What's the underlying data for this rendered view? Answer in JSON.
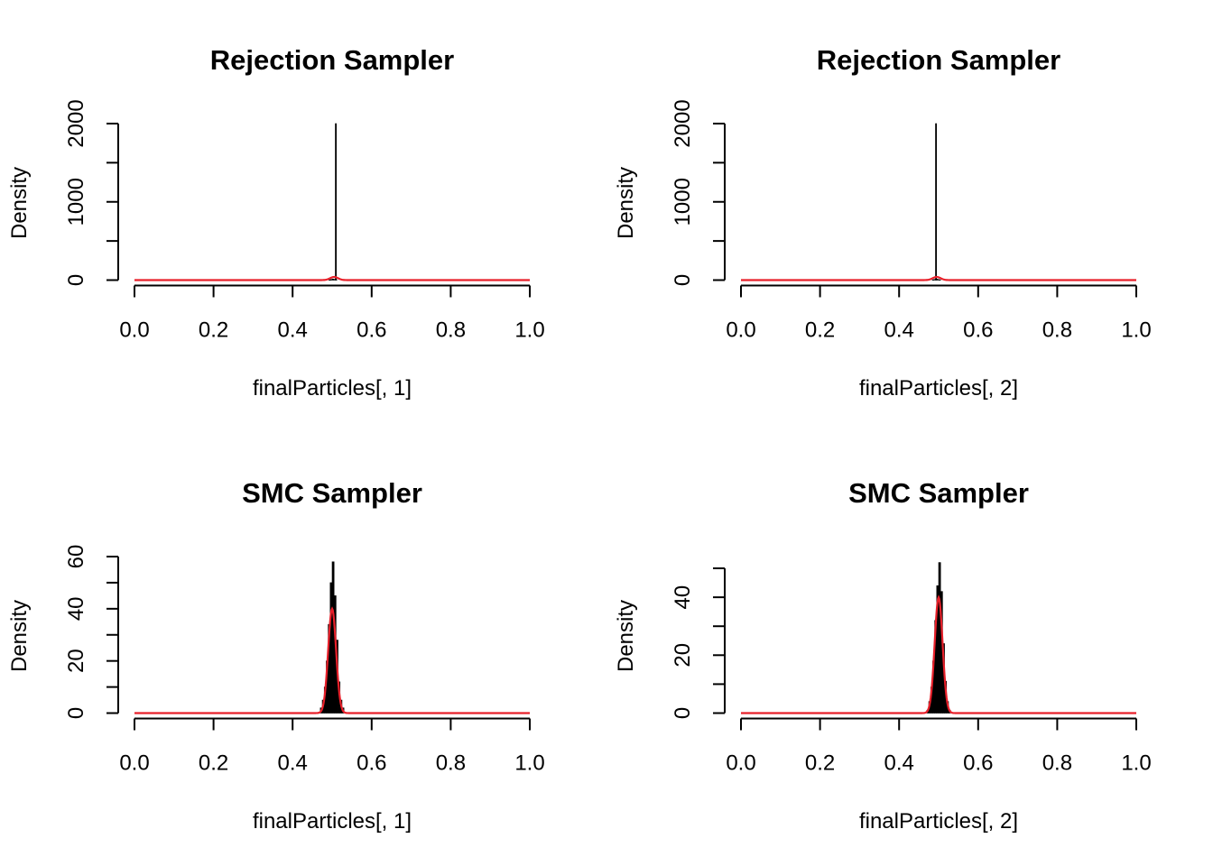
{
  "chart_data": [
    {
      "type": "histogram",
      "title": "Rejection Sampler",
      "xlabel": "finalParticles[, 1]",
      "ylabel": "Density",
      "xlim": [
        0,
        1
      ],
      "ylim": [
        0,
        2000
      ],
      "x_ticks": [
        "0.0",
        "0.2",
        "0.4",
        "0.6",
        "0.8",
        "1.0"
      ],
      "y_ticks": [
        "0",
        "1000",
        "2000"
      ],
      "y_minor_ticks": [
        500,
        1500
      ],
      "bars": [
        {
          "x0": 0.492,
          "x1": 0.496,
          "value": 3
        },
        {
          "x0": 0.496,
          "x1": 0.5,
          "value": 8
        },
        {
          "x0": 0.5,
          "x1": 0.504,
          "value": 14
        },
        {
          "x0": 0.504,
          "x1": 0.508,
          "value": 10
        },
        {
          "x0": 0.508,
          "x1": 0.509,
          "value": 2000
        },
        {
          "x0": 0.509,
          "x1": 0.512,
          "value": 6
        }
      ],
      "density_curve": {
        "color": "#e8202a",
        "mean": 0.505,
        "sd": 0.01,
        "peak": 40
      },
      "grid": false,
      "legend": "none"
    },
    {
      "type": "histogram",
      "title": "Rejection Sampler",
      "xlabel": "finalParticles[, 2]",
      "ylabel": "Density",
      "xlim": [
        0,
        1
      ],
      "ylim": [
        0,
        2000
      ],
      "x_ticks": [
        "0.0",
        "0.2",
        "0.4",
        "0.6",
        "0.8",
        "1.0"
      ],
      "y_ticks": [
        "0",
        "1000",
        "2000"
      ],
      "y_minor_ticks": [
        500,
        1500
      ],
      "bars": [
        {
          "x0": 0.484,
          "x1": 0.488,
          "value": 4
        },
        {
          "x0": 0.488,
          "x1": 0.492,
          "value": 9
        },
        {
          "x0": 0.492,
          "x1": 0.493,
          "value": 2000
        },
        {
          "x0": 0.493,
          "x1": 0.497,
          "value": 13
        },
        {
          "x0": 0.497,
          "x1": 0.501,
          "value": 9
        },
        {
          "x0": 0.501,
          "x1": 0.505,
          "value": 4
        }
      ],
      "density_curve": {
        "color": "#e8202a",
        "mean": 0.495,
        "sd": 0.01,
        "peak": 40
      },
      "grid": false,
      "legend": "none"
    },
    {
      "type": "histogram",
      "title": "SMC Sampler",
      "xlabel": "finalParticles[, 1]",
      "ylabel": "Density",
      "xlim": [
        0,
        1
      ],
      "ylim": [
        0,
        60
      ],
      "x_ticks": [
        "0.0",
        "0.2",
        "0.4",
        "0.6",
        "0.8",
        "1.0"
      ],
      "y_ticks": [
        "0",
        "20",
        "40",
        "60"
      ],
      "y_minor_ticks": [
        10,
        30,
        50
      ],
      "bars": [
        {
          "x0": 0.47,
          "x1": 0.475,
          "value": 2
        },
        {
          "x0": 0.475,
          "x1": 0.48,
          "value": 5
        },
        {
          "x0": 0.48,
          "x1": 0.485,
          "value": 10
        },
        {
          "x0": 0.485,
          "x1": 0.49,
          "value": 20
        },
        {
          "x0": 0.49,
          "x1": 0.495,
          "value": 34
        },
        {
          "x0": 0.495,
          "x1": 0.5,
          "value": 50
        },
        {
          "x0": 0.5,
          "x1": 0.505,
          "value": 58
        },
        {
          "x0": 0.505,
          "x1": 0.51,
          "value": 45
        },
        {
          "x0": 0.51,
          "x1": 0.515,
          "value": 28
        },
        {
          "x0": 0.515,
          "x1": 0.52,
          "value": 12
        },
        {
          "x0": 0.52,
          "x1": 0.525,
          "value": 5
        },
        {
          "x0": 0.525,
          "x1": 0.53,
          "value": 2
        }
      ],
      "density_curve": {
        "color": "#e8202a",
        "mean": 0.5,
        "sd": 0.01,
        "peak": 40
      },
      "grid": false,
      "legend": "none"
    },
    {
      "type": "histogram",
      "title": "SMC Sampler",
      "xlabel": "finalParticles[, 2]",
      "ylabel": "Density",
      "xlim": [
        0,
        1
      ],
      "ylim": [
        0,
        52
      ],
      "x_ticks": [
        "0.0",
        "0.2",
        "0.4",
        "0.6",
        "0.8",
        "1.0"
      ],
      "y_ticks": [
        "0",
        "20",
        "40"
      ],
      "y_minor_ticks": [
        10,
        30,
        50
      ],
      "bars": [
        {
          "x0": 0.47,
          "x1": 0.475,
          "value": 1
        },
        {
          "x0": 0.475,
          "x1": 0.48,
          "value": 4
        },
        {
          "x0": 0.48,
          "x1": 0.485,
          "value": 9
        },
        {
          "x0": 0.485,
          "x1": 0.49,
          "value": 18
        },
        {
          "x0": 0.49,
          "x1": 0.495,
          "value": 32
        },
        {
          "x0": 0.495,
          "x1": 0.5,
          "value": 44
        },
        {
          "x0": 0.5,
          "x1": 0.505,
          "value": 52
        },
        {
          "x0": 0.505,
          "x1": 0.51,
          "value": 42
        },
        {
          "x0": 0.51,
          "x1": 0.515,
          "value": 24
        },
        {
          "x0": 0.515,
          "x1": 0.52,
          "value": 11
        },
        {
          "x0": 0.52,
          "x1": 0.525,
          "value": 4
        },
        {
          "x0": 0.525,
          "x1": 0.53,
          "value": 1
        }
      ],
      "density_curve": {
        "color": "#e8202a",
        "mean": 0.5,
        "sd": 0.01,
        "peak": 40
      },
      "grid": false,
      "legend": "none"
    }
  ]
}
